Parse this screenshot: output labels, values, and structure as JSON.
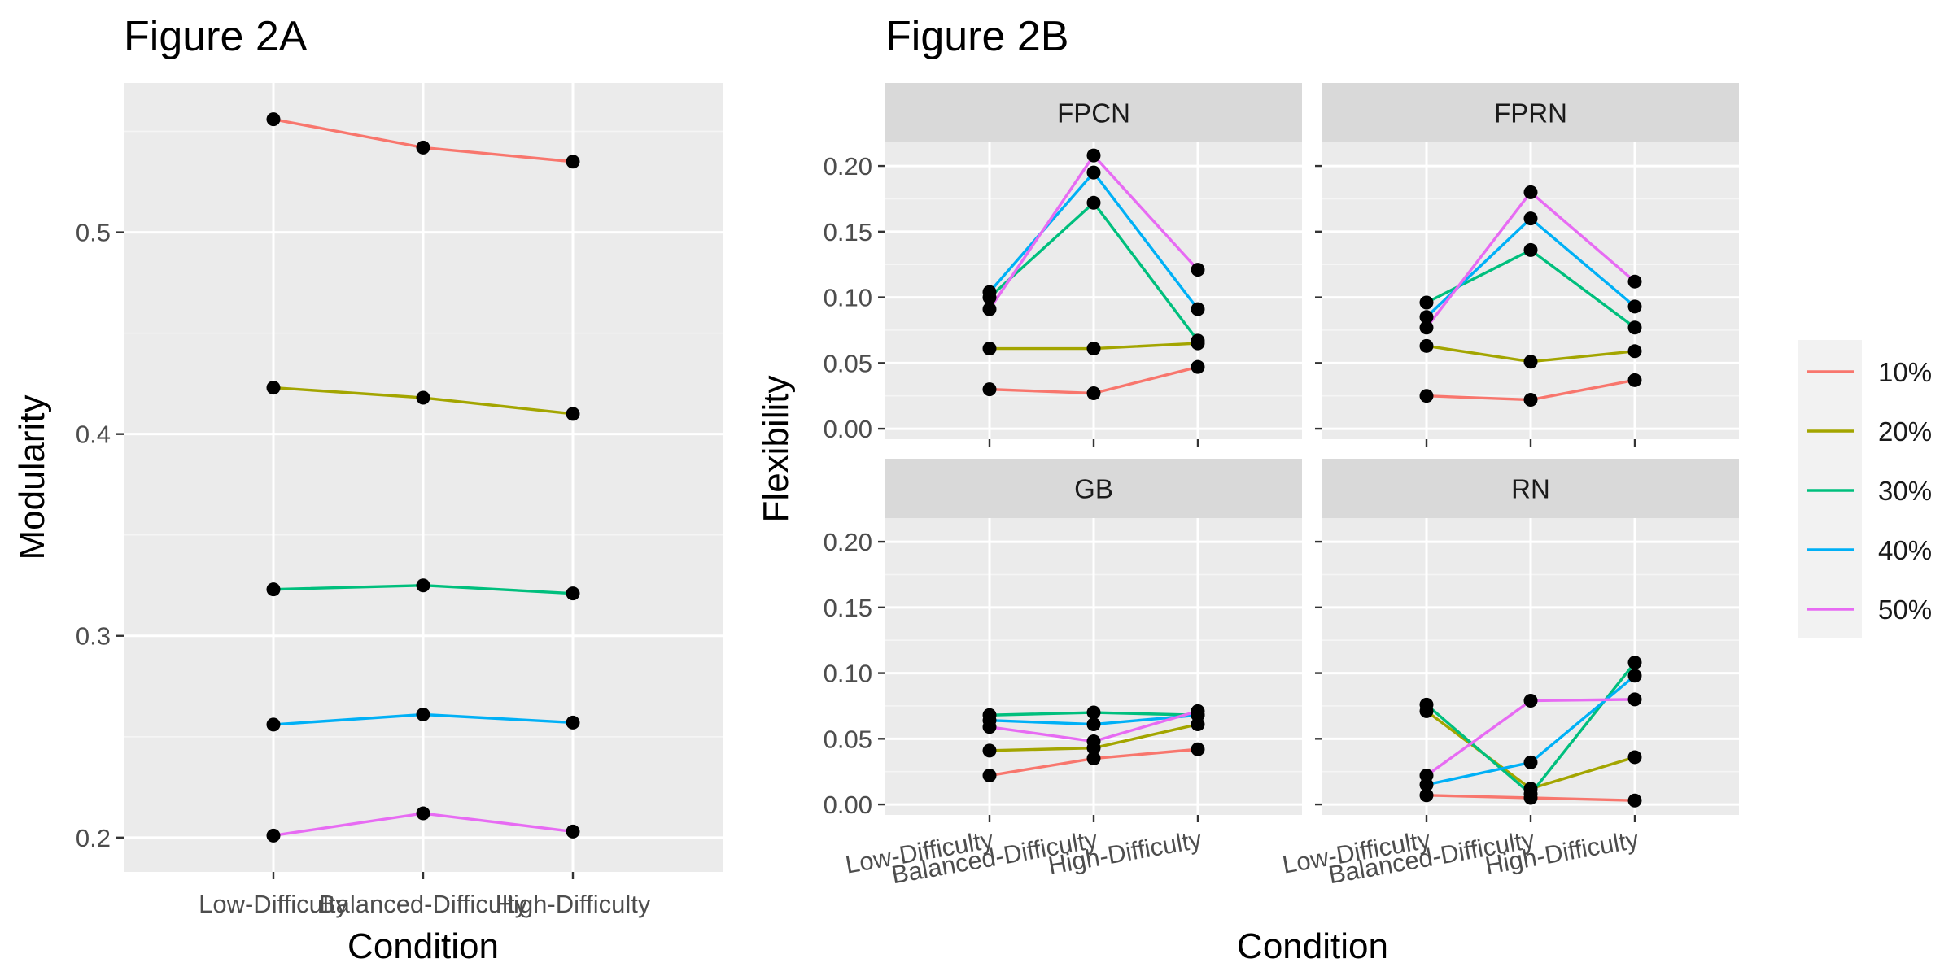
{
  "colors": {
    "panel_bg": "#EBEBEB",
    "grid_major": "#FFFFFF",
    "grid_minor": "#F5F5F5",
    "strip_bg": "#D9D9D9",
    "tick_text": "#4D4D4D",
    "point": "#000000"
  },
  "legend": {
    "position": "right",
    "entries": [
      {
        "label": "10%",
        "color": "#F8766D"
      },
      {
        "label": "20%",
        "color": "#A3A500"
      },
      {
        "label": "30%",
        "color": "#00BF7D"
      },
      {
        "label": "40%",
        "color": "#00B0F6"
      },
      {
        "label": "50%",
        "color": "#E76BF3"
      }
    ]
  },
  "chart_data": [
    {
      "id": "2A",
      "type": "line",
      "title": "Figure 2A",
      "xlabel": "Condition",
      "ylabel": "Modularity",
      "categories": [
        "Low-Difficulty",
        "Balanced-Difficulty",
        "High-Difficulty"
      ],
      "ylim": [
        0.183,
        0.574
      ],
      "yticks": [
        0.2,
        0.3,
        0.4,
        0.5
      ],
      "ytick_labels": [
        "0.2",
        "0.3",
        "0.4",
        "0.5"
      ],
      "grid": true,
      "points": true,
      "series": [
        {
          "name": "10%",
          "values": [
            0.556,
            0.542,
            0.535
          ]
        },
        {
          "name": "20%",
          "values": [
            0.423,
            0.418,
            0.41
          ]
        },
        {
          "name": "30%",
          "values": [
            0.323,
            0.325,
            0.321
          ]
        },
        {
          "name": "40%",
          "values": [
            0.256,
            0.261,
            0.257
          ]
        },
        {
          "name": "50%",
          "values": [
            0.201,
            0.212,
            0.203
          ]
        }
      ]
    },
    {
      "id": "2B",
      "type": "line",
      "title": "Figure 2B",
      "xlabel": "Condition",
      "ylabel": "Flexibility",
      "categories": [
        "Low-Difficulty",
        "Balanced-Difficulty",
        "High-Difficulty"
      ],
      "ylim": [
        -0.008,
        0.218
      ],
      "yticks": [
        0.0,
        0.05,
        0.1,
        0.15,
        0.2
      ],
      "ytick_labels": [
        "0.00",
        "0.05",
        "0.10",
        "0.15",
        "0.20"
      ],
      "grid": true,
      "points": true,
      "facets": [
        {
          "name": "FPCN",
          "series": [
            {
              "name": "10%",
              "values": [
                0.03,
                0.027,
                0.047
              ]
            },
            {
              "name": "20%",
              "values": [
                0.061,
                0.061,
                0.065
              ]
            },
            {
              "name": "30%",
              "values": [
                0.1,
                0.172,
                0.067
              ]
            },
            {
              "name": "40%",
              "values": [
                0.104,
                0.195,
                0.091
              ]
            },
            {
              "name": "50%",
              "values": [
                0.091,
                0.208,
                0.121
              ]
            }
          ]
        },
        {
          "name": "FPRN",
          "series": [
            {
              "name": "10%",
              "values": [
                0.025,
                0.022,
                0.037
              ]
            },
            {
              "name": "20%",
              "values": [
                0.063,
                0.051,
                0.059
              ]
            },
            {
              "name": "30%",
              "values": [
                0.096,
                0.136,
                0.077
              ]
            },
            {
              "name": "40%",
              "values": [
                0.085,
                0.16,
                0.093
              ]
            },
            {
              "name": "50%",
              "values": [
                0.077,
                0.18,
                0.112
              ]
            }
          ]
        },
        {
          "name": "GB",
          "series": [
            {
              "name": "10%",
              "values": [
                0.022,
                0.035,
                0.042
              ]
            },
            {
              "name": "20%",
              "values": [
                0.041,
                0.043,
                0.061
              ]
            },
            {
              "name": "30%",
              "values": [
                0.068,
                0.07,
                0.068
              ]
            },
            {
              "name": "40%",
              "values": [
                0.064,
                0.061,
                0.068
              ]
            },
            {
              "name": "50%",
              "values": [
                0.059,
                0.048,
                0.071
              ]
            }
          ]
        },
        {
          "name": "RN",
          "series": [
            {
              "name": "10%",
              "values": [
                0.007,
                0.005,
                0.003
              ]
            },
            {
              "name": "20%",
              "values": [
                0.071,
                0.012,
                0.036
              ]
            },
            {
              "name": "30%",
              "values": [
                0.076,
                0.008,
                0.108
              ]
            },
            {
              "name": "40%",
              "values": [
                0.015,
                0.032,
                0.098
              ]
            },
            {
              "name": "50%",
              "values": [
                0.022,
                0.079,
                0.08
              ]
            }
          ]
        }
      ]
    }
  ]
}
